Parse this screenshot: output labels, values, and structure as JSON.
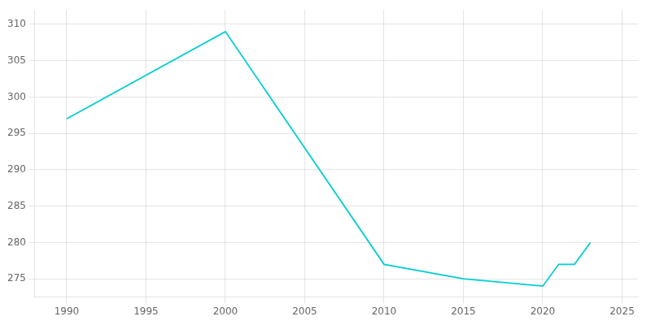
{
  "chart_data": {
    "type": "line",
    "x": [
      1990,
      2000,
      2010,
      2015,
      2020,
      2021,
      2022,
      2023
    ],
    "values": [
      297,
      309,
      277,
      275,
      274,
      277,
      277,
      280
    ],
    "color": "#00CED1",
    "xlim": [
      1988,
      2026
    ],
    "xticks": [
      1990,
      1995,
      2000,
      2005,
      2010,
      2015,
      2020,
      2025
    ],
    "ylim": [
      272.5,
      312
    ],
    "yticks": [
      275,
      280,
      285,
      290,
      295,
      300,
      305,
      310
    ],
    "grid": true
  }
}
